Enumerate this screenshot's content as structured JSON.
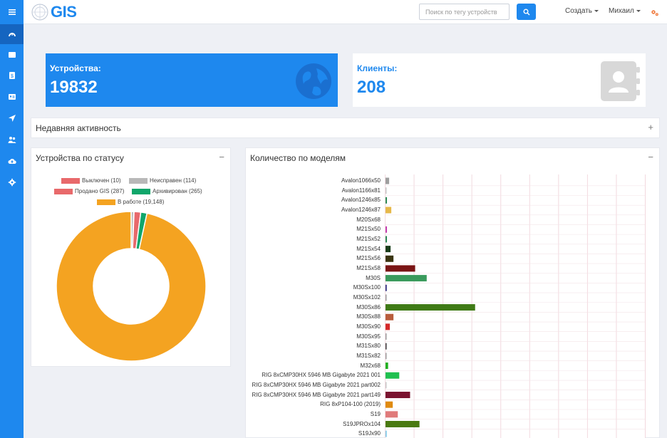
{
  "logo": {
    "text": "GIS"
  },
  "search": {
    "placeholder": "Поиск по тегу устройств"
  },
  "topbar": {
    "create_label": "Создать",
    "user_label": "Михаил"
  },
  "sidebar": {
    "items": [
      {
        "icon": "menu-icon"
      },
      {
        "icon": "dashboard-icon"
      },
      {
        "icon": "list-icon"
      },
      {
        "icon": "dollar-icon"
      },
      {
        "icon": "id-card-icon"
      },
      {
        "icon": "location-arrow-icon"
      },
      {
        "icon": "users-icon"
      },
      {
        "icon": "cloud-upload-icon"
      },
      {
        "icon": "gear-icon"
      }
    ]
  },
  "cards": {
    "devices": {
      "label": "Устройства:",
      "value": "19832",
      "icon": "globe-icon"
    },
    "clients": {
      "label": "Клиенты:",
      "value": "208",
      "icon": "address-book-icon"
    }
  },
  "activity": {
    "title": "Недавняя активность",
    "toggle": "+"
  },
  "status_panel": {
    "title": "Устройства по статусу",
    "toggle": "−"
  },
  "models_panel": {
    "title": "Количество по моделям",
    "toggle": "−"
  },
  "colors": {
    "accent": "#1e88ee"
  },
  "chart_data": [
    {
      "type": "pie",
      "title": "Устройства по статусу",
      "legend_placement": "top",
      "slices": [
        {
          "label": "Выключен (10)",
          "value": 10,
          "color": "#e8696b"
        },
        {
          "label": "Неисправен (114)",
          "value": 114,
          "color": "#b8b8b8"
        },
        {
          "label": "Продано GIS (287)",
          "value": 287,
          "color": "#e8696b"
        },
        {
          "label": "Архивирован (265)",
          "value": 265,
          "color": "#0fa66a"
        },
        {
          "label": "В работе (19,148)",
          "value": 19148,
          "color": "#f4a321"
        }
      ],
      "draw_order": [
        1,
        0,
        2,
        3,
        4
      ]
    },
    {
      "type": "bar",
      "orientation": "horizontal",
      "title": "Количество по моделям",
      "grid": true,
      "xlim": [
        0,
        1800
      ],
      "categories": [
        "Avalon1066x50",
        "Avalon1166x81",
        "Avalon1246x85",
        "Avalon1246x87",
        "M20Sx68",
        "M21Sx50",
        "M21Sx52",
        "M21Sx54",
        "M21Sx56",
        "M21Sx58",
        "M30S",
        "M30Sx100",
        "M30Sx102",
        "M30Sx86",
        "M30Sx88",
        "M30Sx90",
        "M30Sx95",
        "M31Sx80",
        "M31Sx82",
        "M32x68",
        "RIG 8xCMP30HX 5946 MB Gigabyte 2021 001",
        "RIG 8xCMP30HX 5946 MB Gigabyte 2021 part002",
        "RIG 8xCMP30HX 5946 MB Gigabyte 2021 part149",
        "RIG 8xP104-100 (2019)",
        "S19",
        "S19JPROx104",
        "S19Jx90"
      ],
      "values": [
        25,
        5,
        10,
        40,
        0,
        10,
        10,
        35,
        55,
        205,
        285,
        8,
        3,
        620,
        55,
        30,
        4,
        5,
        3,
        18,
        95,
        3,
        170,
        50,
        85,
        235,
        8
      ],
      "colors": [
        "#9e9e9e",
        "#c8c8c8",
        "#2e8b57",
        "#e6b84a",
        "#cccccc",
        "#c43fb0",
        "#2e8b57",
        "#1a3d1a",
        "#3a3410",
        "#7a1414",
        "#3a9a5c",
        "#22227a",
        "#9e9e9e",
        "#3f7a16",
        "#b85c3c",
        "#d42a2a",
        "#9e9e9e",
        "#3a3a3a",
        "#9e9e9e",
        "#20b020",
        "#20c050",
        "#c8c8c8",
        "#7a1430",
        "#e08a10",
        "#e07a7a",
        "#4a7a10",
        "#7ac8e8"
      ]
    }
  ]
}
